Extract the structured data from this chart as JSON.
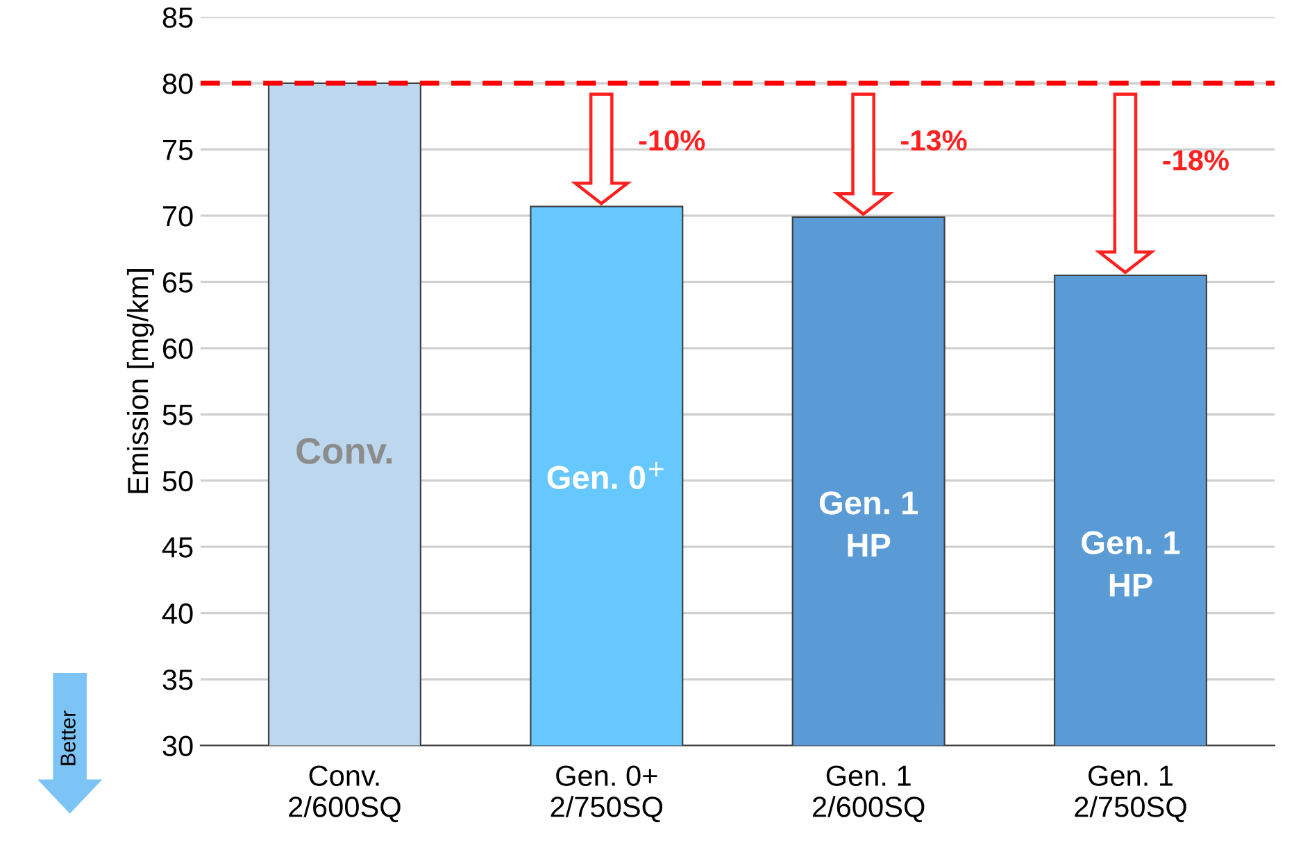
{
  "chart_data": {
    "type": "bar",
    "ylabel": "Emission [mg/km]",
    "categories": [
      "Conv.\n2/600SQ",
      "Gen. 0+\n2/750SQ",
      "Gen. 1\n2/600SQ",
      "Gen. 1\n2/750SQ"
    ],
    "values": [
      80,
      70.7,
      69.9,
      65.5
    ],
    "colors": [
      "#bdd7ee",
      "#66c8ff",
      "#5b9bd5",
      "#5b9bd5"
    ],
    "ylim": [
      30,
      85
    ],
    "yticks": [
      30,
      35,
      40,
      45,
      50,
      55,
      60,
      65,
      70,
      75,
      80,
      85
    ],
    "grid": "y",
    "ref_lines": [
      {
        "axis": "y",
        "value": 80,
        "color": "#ff0000",
        "line_style": "dashed"
      }
    ],
    "annotations": [
      "Conv.",
      "Gen. 0$^{+}$",
      "Gen. 1\nHP",
      "Gen. 1\nHP",
      "-10%",
      "-13%",
      "-18%",
      "Better"
    ]
  }
}
